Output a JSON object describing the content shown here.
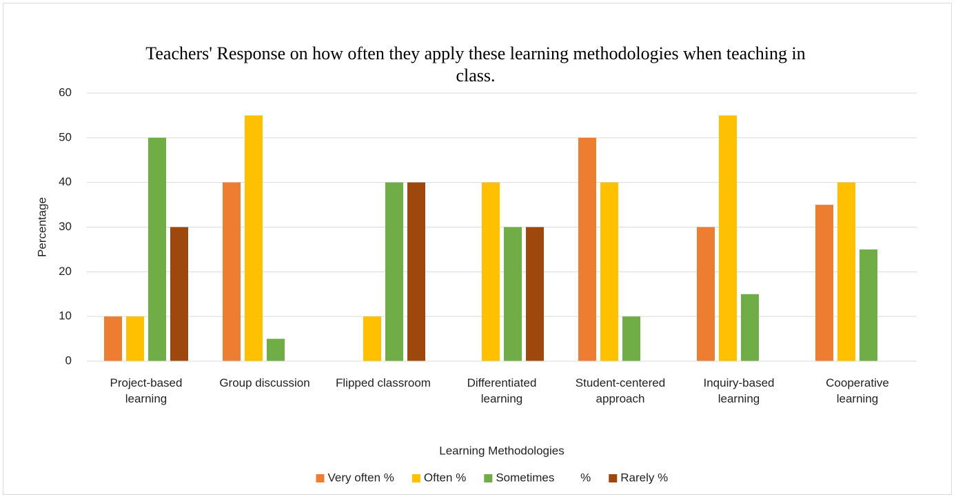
{
  "chart_data": {
    "type": "bar",
    "title": "Teachers' Response on how often they apply these learning methodologies when teaching in class.",
    "x_label": "Learning Methodologies",
    "y_label": "Percentage",
    "categories": [
      "Project-based learning",
      "Group discussion",
      "Flipped classroom",
      "Differentiated learning",
      "Student-centered approach",
      "Inquiry-based learning",
      "Cooperative learning"
    ],
    "series": [
      {
        "name": "Very often %",
        "color": "#ED7D31",
        "values": [
          10,
          40,
          0,
          0,
          50,
          30,
          35
        ]
      },
      {
        "name": "Often %",
        "color": "#FFC000",
        "values": [
          10,
          55,
          10,
          40,
          40,
          55,
          40
        ]
      },
      {
        "name": "Sometimes        %",
        "color": "#70AD47",
        "values": [
          50,
          5,
          40,
          30,
          10,
          15,
          25
        ]
      },
      {
        "name": "Rarely %",
        "color": "#9E480E",
        "values": [
          30,
          0,
          40,
          30,
          0,
          0,
          0
        ]
      }
    ],
    "ylim": [
      0,
      60
    ],
    "yticks": [
      0,
      10,
      20,
      30,
      40,
      50,
      60
    ],
    "grid": true,
    "legend": "bottom"
  }
}
